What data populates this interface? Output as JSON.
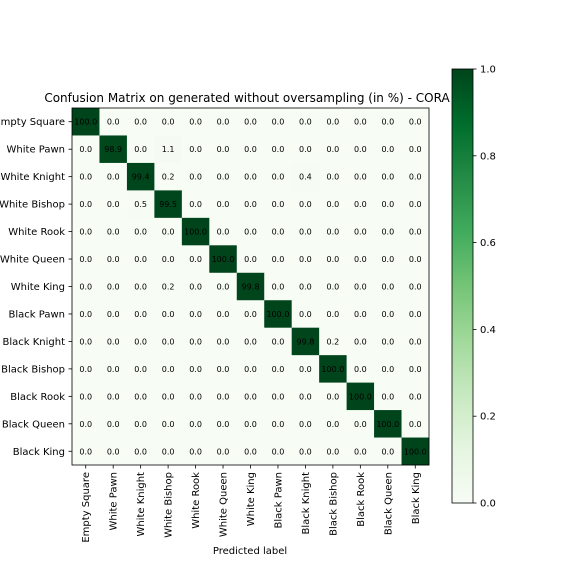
{
  "chart_data": {
    "type": "heatmap",
    "title": "Confusion Matrix on generated without oversampling (in %) - CORA",
    "xlabel": "Predicted label",
    "ylabel": "",
    "categories": [
      "Empty Square",
      "White Pawn",
      "White Knight",
      "White Bishop",
      "White Rook",
      "White Queen",
      "White King",
      "Black Pawn",
      "Black Knight",
      "Black Bishop",
      "Black Rook",
      "Black Queen",
      "Black King"
    ],
    "values": [
      [
        100.0,
        0.0,
        0.0,
        0.0,
        0.0,
        0.0,
        0.0,
        0.0,
        0.0,
        0.0,
        0.0,
        0.0,
        0.0
      ],
      [
        0.0,
        98.9,
        0.0,
        1.1,
        0.0,
        0.0,
        0.0,
        0.0,
        0.0,
        0.0,
        0.0,
        0.0,
        0.0
      ],
      [
        0.0,
        0.0,
        99.4,
        0.2,
        0.0,
        0.0,
        0.0,
        0.0,
        0.4,
        0.0,
        0.0,
        0.0,
        0.0
      ],
      [
        0.0,
        0.0,
        0.5,
        99.5,
        0.0,
        0.0,
        0.0,
        0.0,
        0.0,
        0.0,
        0.0,
        0.0,
        0.0
      ],
      [
        0.0,
        0.0,
        0.0,
        0.0,
        100.0,
        0.0,
        0.0,
        0.0,
        0.0,
        0.0,
        0.0,
        0.0,
        0.0
      ],
      [
        0.0,
        0.0,
        0.0,
        0.0,
        0.0,
        100.0,
        0.0,
        0.0,
        0.0,
        0.0,
        0.0,
        0.0,
        0.0
      ],
      [
        0.0,
        0.0,
        0.0,
        0.2,
        0.0,
        0.0,
        99.8,
        0.0,
        0.0,
        0.0,
        0.0,
        0.0,
        0.0
      ],
      [
        0.0,
        0.0,
        0.0,
        0.0,
        0.0,
        0.0,
        0.0,
        100.0,
        0.0,
        0.0,
        0.0,
        0.0,
        0.0
      ],
      [
        0.0,
        0.0,
        0.0,
        0.0,
        0.0,
        0.0,
        0.0,
        0.0,
        99.8,
        0.2,
        0.0,
        0.0,
        0.0
      ],
      [
        0.0,
        0.0,
        0.0,
        0.0,
        0.0,
        0.0,
        0.0,
        0.0,
        0.0,
        100.0,
        0.0,
        0.0,
        0.0
      ],
      [
        0.0,
        0.0,
        0.0,
        0.0,
        0.0,
        0.0,
        0.0,
        0.0,
        0.0,
        0.0,
        100.0,
        0.0,
        0.0
      ],
      [
        0.0,
        0.0,
        0.0,
        0.0,
        0.0,
        0.0,
        0.0,
        0.0,
        0.0,
        0.0,
        0.0,
        100.0,
        0.0
      ],
      [
        0.0,
        0.0,
        0.0,
        0.0,
        0.0,
        0.0,
        0.0,
        0.0,
        0.0,
        0.0,
        0.0,
        0.0,
        100.0
      ]
    ],
    "colorbar": {
      "ticks": [
        "0.0",
        "0.2",
        "0.4",
        "0.6",
        "0.8",
        "1.0"
      ],
      "range": [
        0.0,
        1.0
      ],
      "colormap": "Greens",
      "color_low": "#f7fcf5",
      "color_high": "#00441b"
    },
    "grid": false
  }
}
